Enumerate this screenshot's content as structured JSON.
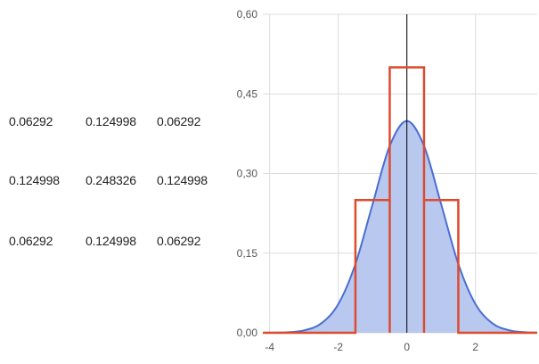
{
  "kernel_matrix": {
    "rows": [
      [
        "0.06292",
        "0.124998",
        "0.06292"
      ],
      [
        "0.124998",
        "0.248326",
        "0.124998"
      ],
      [
        "0.06292",
        "0.124998",
        "0.06292"
      ]
    ]
  },
  "chart_data": {
    "type": "area",
    "xlim": [
      -4.2,
      3.8
    ],
    "ylim": [
      0,
      0.6
    ],
    "x_ticks": [
      -4,
      -2,
      0,
      2
    ],
    "x_tick_labels": [
      "-4",
      "-2",
      "0",
      "2"
    ],
    "y_ticks": [
      0,
      0.15,
      0.3,
      0.45,
      0.6
    ],
    "y_tick_labels": [
      "0,00",
      "0,15",
      "0,30",
      "0,45",
      "0,60"
    ],
    "grid": true,
    "series": [
      {
        "kind": "area",
        "style": "smooth-curve",
        "x": [
          -4.2,
          -3.5,
          -3.0,
          -2.5,
          -2.0,
          -1.5,
          -1.0,
          -0.5,
          0.0,
          0.5,
          1.0,
          1.5,
          2.0,
          2.5,
          3.0,
          3.5,
          3.8
        ],
        "y": [
          0.0001,
          0.0009,
          0.0044,
          0.0175,
          0.054,
          0.1295,
          0.242,
          0.352,
          0.399,
          0.352,
          0.242,
          0.1295,
          0.054,
          0.0175,
          0.0044,
          0.0009,
          0.0003
        ],
        "color": "#4a6fd0",
        "fill": "#b9c8ef"
      },
      {
        "kind": "step",
        "edges": [
          -4.2,
          -1.5,
          -0.5,
          0.5,
          1.5,
          3.8
        ],
        "values": [
          0,
          0.25,
          0.5,
          0.25,
          0
        ],
        "color": "#dd4b2f"
      }
    ]
  },
  "colors": {
    "curve": "#4a6fd0",
    "area_fill": "#b9c8ef",
    "step": "#dd4b2f",
    "grid": "#dcdcdc",
    "axis": "#000000"
  }
}
